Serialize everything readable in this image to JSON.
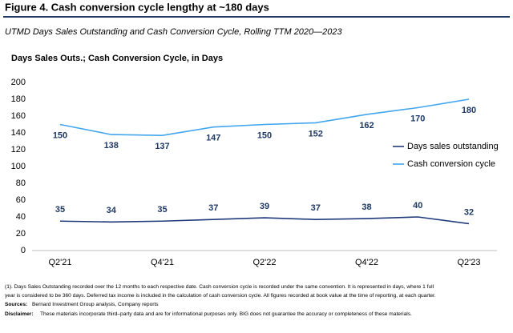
{
  "chart_data": {
    "type": "line",
    "title": "Figure 4. Cash conversion cycle lengthy at ~180 days",
    "subtitle": "UTMD Days Sales Outstanding and Cash Conversion Cycle, Rolling TTM 2020—2023",
    "y_label": "Days Sales Outs.; Cash Conversion Cycle, in Days",
    "categories": [
      "Q2'21",
      null,
      "Q4'21",
      null,
      "Q2'22",
      null,
      "Q4'22",
      null,
      "Q2'23"
    ],
    "series": [
      {
        "name": "Days sales outstanding",
        "color": "#1f3a7a",
        "values": [
          35,
          34,
          35,
          37,
          39,
          37,
          38,
          40,
          32
        ]
      },
      {
        "name": "Cash conversion cycle",
        "color": "#41a6ee",
        "values": [
          150,
          138,
          137,
          147,
          150,
          152,
          162,
          170,
          180
        ]
      }
    ],
    "ylim": [
      0,
      200
    ],
    "yticks": [
      0,
      20,
      40,
      60,
      80,
      100,
      120,
      140,
      160,
      180,
      200
    ],
    "grid": false,
    "legend": "right",
    "notes": [
      "(1). Days Sales Outstanding recorded over the 12 months to each respective date. Cash conversion cycle is recorded under the same convention. It is represented in days, where 1 full",
      "year is considered to be 360 days. Deferred tax income is included in the calculation of cash conversion cycle. All figures recorded at book value at the time of reporting, at each quarter."
    ],
    "sources_label": "Sources:",
    "sources": "Bernard Investment Group analysis, Company reports",
    "disclaimer_label": "Disclaimer:",
    "disclaimer": "These materials incorporate third–party data and are for informational purposes only. BIG does not guarantee the accuracy or completeness of these materials."
  }
}
